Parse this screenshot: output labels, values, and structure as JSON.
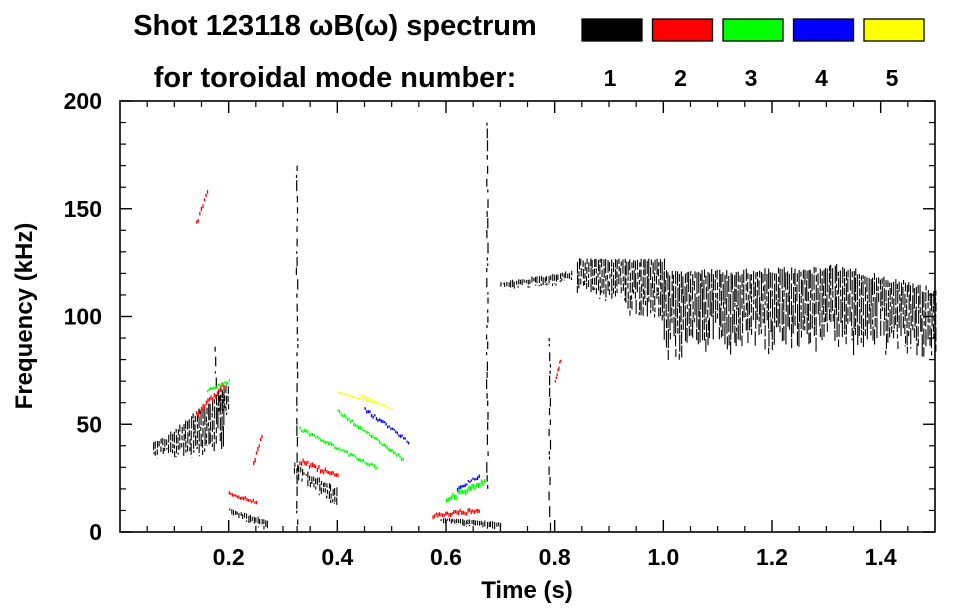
{
  "chart_data": {
    "type": "scatter",
    "title_line1": "Shot 123118 ωB(ω) spectrum",
    "title_line2": "for toroidal mode number:",
    "xlabel": "Time (s)",
    "ylabel": "Frequency (kHz)",
    "xlim": [
      0.0,
      1.5
    ],
    "ylim": [
      0,
      200
    ],
    "x_ticks": [
      0.2,
      0.4,
      0.6,
      0.8,
      1.0,
      1.2,
      1.4
    ],
    "x_tick_labels": [
      "0.2",
      "0.4",
      "0.6",
      "0.8",
      "1.0",
      "1.2",
      "1.4"
    ],
    "y_ticks": [
      0,
      50,
      100,
      150,
      200
    ],
    "y_tick_labels": [
      "0",
      "50",
      "100",
      "150",
      "200"
    ],
    "legend": [
      {
        "label": "1",
        "color": "#000000"
      },
      {
        "label": "2",
        "color": "#ff0000"
      },
      {
        "label": "3",
        "color": "#00ff00"
      },
      {
        "label": "4",
        "color": "#0000ff"
      },
      {
        "label": "5",
        "color": "#ffff00"
      }
    ],
    "series": [
      {
        "name": "n=1",
        "color": "#000000",
        "regions": [
          {
            "kind": "band",
            "t0": 0.06,
            "t1": 0.19,
            "f0": [
              40,
              40
            ],
            "f1": [
              38,
              64
            ],
            "depth": 22
          },
          {
            "kind": "band",
            "t0": 0.18,
            "t1": 0.2,
            "f0": [
              58,
              58
            ],
            "f1": [
              66,
              66
            ],
            "depth": 20
          },
          {
            "kind": "spike",
            "t": 0.175,
            "f0": 60,
            "f1": 86
          },
          {
            "kind": "band",
            "t0": 0.2,
            "t1": 0.27,
            "f0": [
              10,
              2
            ],
            "f1": [
              10,
              5
            ],
            "depth": 8
          },
          {
            "kind": "band",
            "t0": 0.32,
            "t1": 0.4,
            "f0": [
              30,
              15
            ],
            "f1": [
              30,
              18
            ],
            "depth": 20
          },
          {
            "kind": "spike",
            "t": 0.325,
            "f0": 0,
            "f1": 170
          },
          {
            "kind": "band",
            "t0": 0.59,
            "t1": 0.7,
            "f0": [
              6,
              2
            ],
            "f1": [
              6,
              4
            ],
            "depth": 7
          },
          {
            "kind": "band",
            "t0": 0.7,
            "t1": 0.83,
            "f0": [
              115,
              120
            ],
            "f1": [
              115,
              118
            ],
            "depth": 12
          },
          {
            "kind": "spike",
            "t": 0.79,
            "f0": 0,
            "f1": 90
          },
          {
            "kind": "spike",
            "t": 0.675,
            "f0": 20,
            "f1": 190
          },
          {
            "kind": "band",
            "t0": 0.84,
            "t1": 0.93,
            "f0": [
              125,
              125
            ],
            "f1": [
              115,
              110
            ],
            "depth": 18
          },
          {
            "kind": "band",
            "t0": 0.93,
            "t1": 1.0,
            "f0": [
              125,
              125
            ],
            "f1": [
              105,
              100
            ],
            "depth": 16
          },
          {
            "kind": "band",
            "t0": 1.0,
            "t1": 1.3,
            "f0": [
              118,
              120
            ],
            "f1": [
              88,
              89
            ],
            "depth": 30
          },
          {
            "kind": "band",
            "t0": 1.3,
            "t1": 1.5,
            "f0": [
              122,
              110
            ],
            "f1": [
              90,
              88
            ],
            "depth": 30
          }
        ]
      },
      {
        "name": "n=2",
        "color": "#ff0000",
        "regions": [
          {
            "kind": "streak",
            "t0": 0.14,
            "t1": 0.16,
            "f0": 143,
            "f1": 158,
            "width": 3
          },
          {
            "kind": "streak",
            "t0": 0.14,
            "t1": 0.19,
            "f0": 55,
            "f1": 68,
            "width": 4
          },
          {
            "kind": "streak",
            "t0": 0.245,
            "t1": 0.26,
            "f0": 32,
            "f1": 45,
            "width": 3
          },
          {
            "kind": "streak",
            "t0": 0.2,
            "t1": 0.25,
            "f0": 18,
            "f1": 14,
            "width": 2
          },
          {
            "kind": "streak",
            "t0": 0.33,
            "t1": 0.4,
            "f0": 33,
            "f1": 26,
            "width": 3
          },
          {
            "kind": "streak",
            "t0": 0.575,
            "t1": 0.66,
            "f0": 8,
            "f1": 10,
            "width": 3
          },
          {
            "kind": "streak",
            "t0": 0.8,
            "t1": 0.81,
            "f0": 70,
            "f1": 80,
            "width": 2
          }
        ]
      },
      {
        "name": "n=3",
        "color": "#00ff00",
        "regions": [
          {
            "kind": "streak",
            "t0": 0.16,
            "t1": 0.2,
            "f0": 66,
            "f1": 70,
            "width": 2
          },
          {
            "kind": "streak",
            "t0": 0.33,
            "t1": 0.47,
            "f0": 48,
            "f1": 30,
            "width": 2
          },
          {
            "kind": "streak",
            "t0": 0.4,
            "t1": 0.52,
            "f0": 56,
            "f1": 34,
            "width": 2
          },
          {
            "kind": "streak",
            "t0": 0.6,
            "t1": 0.67,
            "f0": 15,
            "f1": 24,
            "width": 4
          }
        ]
      },
      {
        "name": "n=4",
        "color": "#0000ff",
        "regions": [
          {
            "kind": "streak",
            "t0": 0.45,
            "t1": 0.53,
            "f0": 57,
            "f1": 42,
            "width": 2
          },
          {
            "kind": "streak",
            "t0": 0.62,
            "t1": 0.66,
            "f0": 20,
            "f1": 26,
            "width": 2
          }
        ]
      },
      {
        "name": "n=5",
        "color": "#ffff00",
        "regions": [
          {
            "kind": "streak",
            "t0": 0.4,
            "t1": 0.47,
            "f0": 65,
            "f1": 60,
            "width": 1
          },
          {
            "kind": "streak",
            "t0": 0.44,
            "t1": 0.5,
            "f0": 64,
            "f1": 57,
            "width": 1
          }
        ]
      }
    ]
  }
}
